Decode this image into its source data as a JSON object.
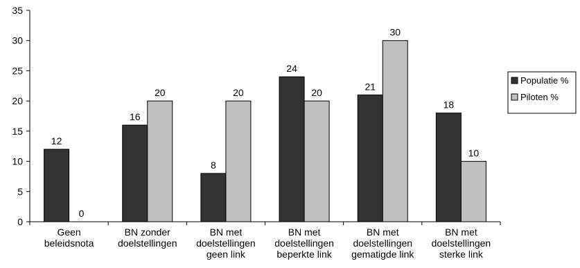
{
  "chart_data": {
    "type": "bar",
    "title": "",
    "xlabel": "",
    "ylabel": "",
    "ylim": [
      0,
      35
    ],
    "yticks": [
      0,
      5,
      10,
      15,
      20,
      25,
      30,
      35
    ],
    "grid": false,
    "legend_position": "right",
    "categories": [
      [
        "Geen",
        "beleidsnota"
      ],
      [
        "BN zonder",
        "doelstellingen"
      ],
      [
        "BN met",
        "doelstellingen",
        "geen link"
      ],
      [
        "BN met",
        "doelstellingen",
        "beperkte link"
      ],
      [
        "BN met",
        "doelstellingen",
        "gematigde link"
      ],
      [
        "BN met",
        "doelstellingen",
        "sterke link"
      ]
    ],
    "series": [
      {
        "name": "Populatie %",
        "color": "#333333",
        "values": [
          12,
          16,
          8,
          24,
          21,
          18
        ]
      },
      {
        "name": "Piloten %",
        "color": "#c0c0c0",
        "values": [
          0,
          20,
          20,
          20,
          30,
          10
        ]
      }
    ]
  }
}
